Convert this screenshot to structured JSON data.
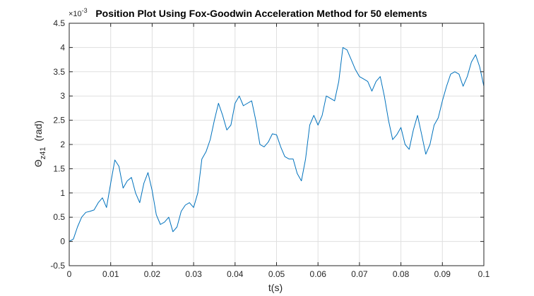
{
  "chart_data": {
    "type": "line",
    "title": "Position Plot Using Fox-Goodwin Acceleration Method for 50 elements",
    "xlabel": "t(s)",
    "ylabel": {
      "symbol": "Θ",
      "subscript": "z41",
      "unit": "(rad)"
    },
    "y_exponent": {
      "base": "×10",
      "power": "-3"
    },
    "xlim": [
      0,
      0.1
    ],
    "ylim": [
      -0.5,
      4.5
    ],
    "x_ticks": [
      "0",
      "0.01",
      "0.02",
      "0.03",
      "0.04",
      "0.05",
      "0.06",
      "0.07",
      "0.08",
      "0.09",
      "0.1"
    ],
    "y_ticks": [
      "-0.5",
      "0",
      "0.5",
      "1",
      "1.5",
      "2",
      "2.5",
      "3",
      "3.5",
      "4",
      "4.5"
    ],
    "grid": true,
    "line_color": "#0072BD",
    "series": [
      {
        "x": [
          0,
          0.001,
          0.002,
          0.003,
          0.004,
          0.005,
          0.006,
          0.007,
          0.008,
          0.009,
          0.01,
          0.011,
          0.012,
          0.013,
          0.014,
          0.015,
          0.016,
          0.017,
          0.018,
          0.019,
          0.02,
          0.021,
          0.022,
          0.023,
          0.024,
          0.025,
          0.026,
          0.027,
          0.028,
          0.029,
          0.03,
          0.031,
          0.032,
          0.033,
          0.034,
          0.035,
          0.036,
          0.037,
          0.038,
          0.039,
          0.04,
          0.041,
          0.042,
          0.043,
          0.044,
          0.045,
          0.046,
          0.047,
          0.048,
          0.049,
          0.05,
          0.051,
          0.052,
          0.053,
          0.054,
          0.055,
          0.056,
          0.057,
          0.058,
          0.059,
          0.06,
          0.061,
          0.062,
          0.063,
          0.064,
          0.065,
          0.066,
          0.067,
          0.068,
          0.069,
          0.07,
          0.071,
          0.072,
          0.073,
          0.074,
          0.075,
          0.076,
          0.077,
          0.078,
          0.079,
          0.08,
          0.081,
          0.082,
          0.083,
          0.084,
          0.085,
          0.086,
          0.087,
          0.088,
          0.089,
          0.09,
          0.091,
          0.092,
          0.093,
          0.094,
          0.095,
          0.096,
          0.097,
          0.098,
          0.099,
          0.1
        ],
        "y": [
          0,
          0.05,
          0.3,
          0.5,
          0.6,
          0.62,
          0.65,
          0.8,
          0.9,
          0.7,
          1.2,
          1.68,
          1.55,
          1.1,
          1.25,
          1.32,
          1.0,
          0.8,
          1.2,
          1.42,
          1.05,
          0.55,
          0.35,
          0.4,
          0.5,
          0.2,
          0.3,
          0.62,
          0.75,
          0.8,
          0.7,
          1.0,
          1.7,
          1.85,
          2.1,
          2.5,
          2.85,
          2.6,
          2.3,
          2.4,
          2.85,
          3.0,
          2.8,
          2.85,
          2.9,
          2.5,
          2.0,
          1.95,
          2.05,
          2.22,
          2.2,
          1.95,
          1.75,
          1.7,
          1.7,
          1.4,
          1.25,
          1.7,
          2.4,
          2.6,
          2.4,
          2.6,
          3.0,
          2.95,
          2.9,
          3.3,
          4.0,
          3.95,
          3.75,
          3.55,
          3.4,
          3.35,
          3.3,
          3.1,
          3.3,
          3.4,
          3.0,
          2.5,
          2.1,
          2.2,
          2.35,
          2.0,
          1.9,
          2.3,
          2.6,
          2.2,
          1.8,
          2.0,
          2.4,
          2.55,
          2.9,
          3.2,
          3.45,
          3.5,
          3.45,
          3.2,
          3.4,
          3.7,
          3.85,
          3.6,
          3.2
        ]
      }
    ]
  }
}
